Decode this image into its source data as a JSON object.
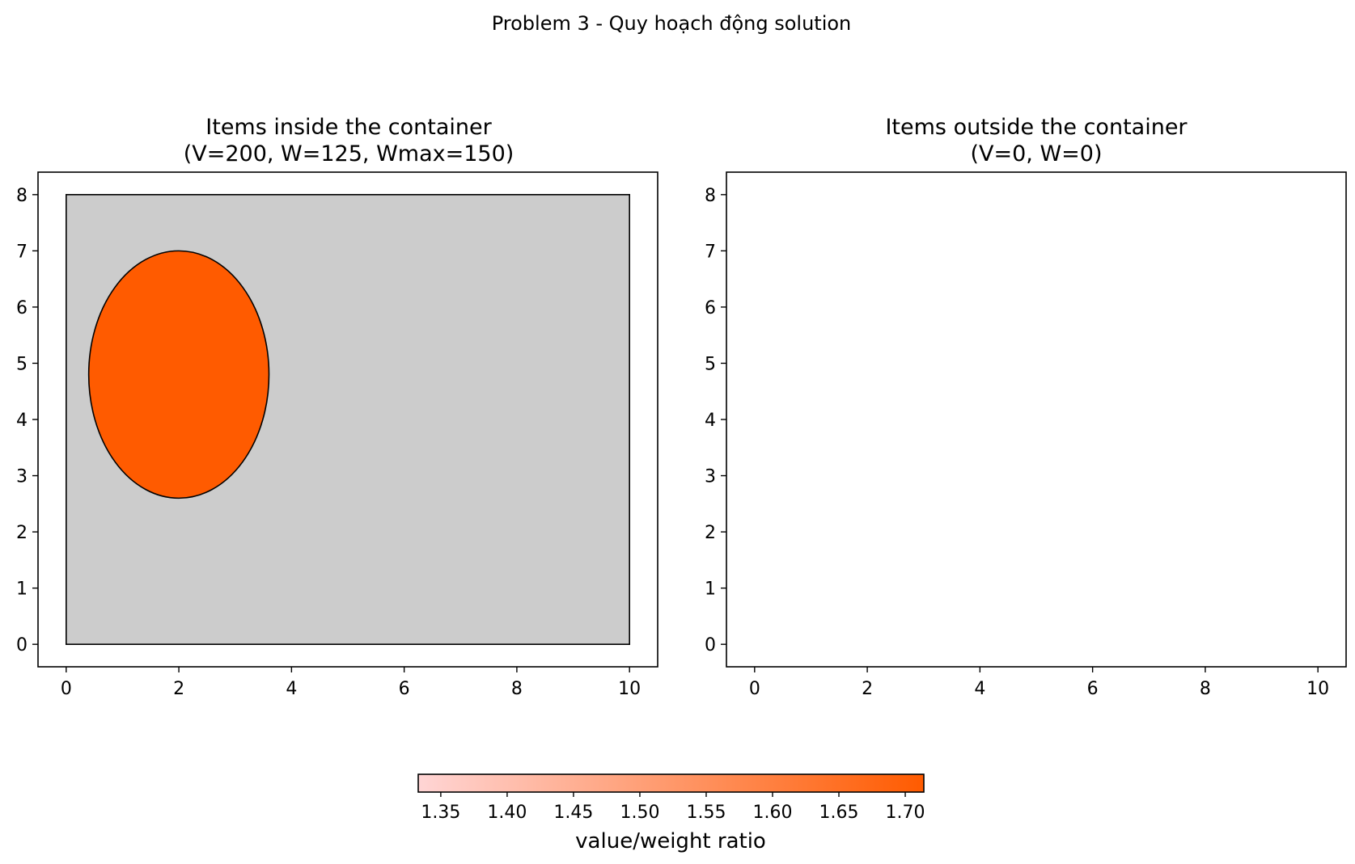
{
  "figure_title": "Problem 3 - Quy hoạch động solution",
  "chart_data": [
    {
      "type": "scatter",
      "title_line1": "Items inside the container",
      "title_line2": "(V=200, W=125, Wmax=150)",
      "xlim": [
        -0.5,
        10.5
      ],
      "ylim": [
        -0.4,
        8.4
      ],
      "xticks": [
        "0",
        "2",
        "4",
        "6",
        "8",
        "10"
      ],
      "yticks": [
        "0",
        "1",
        "2",
        "3",
        "4",
        "5",
        "6",
        "7",
        "8"
      ],
      "container": {
        "x": [
          0,
          10
        ],
        "y": [
          0,
          8
        ],
        "fill": "#cccccc"
      },
      "items": [
        {
          "shape": "ellipse",
          "cx": 2.0,
          "cy": 4.8,
          "rx": 1.6,
          "ry": 2.2,
          "ratio": 1.71,
          "fill": "#ff5b00"
        }
      ]
    },
    {
      "type": "scatter",
      "title_line1": "Items outside the container",
      "title_line2": "(V=0, W=0)",
      "xlim": [
        -0.5,
        10.5
      ],
      "ylim": [
        -0.4,
        8.4
      ],
      "xticks": [
        "0",
        "2",
        "4",
        "6",
        "8",
        "10"
      ],
      "yticks": [
        "0",
        "1",
        "2",
        "3",
        "4",
        "5",
        "6",
        "7",
        "8"
      ],
      "items": []
    }
  ],
  "colorbar": {
    "label": "value/weight ratio",
    "range": [
      1.333,
      1.714
    ],
    "ticks": [
      "1.35",
      "1.40",
      "1.45",
      "1.50",
      "1.55",
      "1.60",
      "1.65",
      "1.70"
    ],
    "color_low": "#ffd5d5",
    "color_high": "#ff5b00"
  }
}
